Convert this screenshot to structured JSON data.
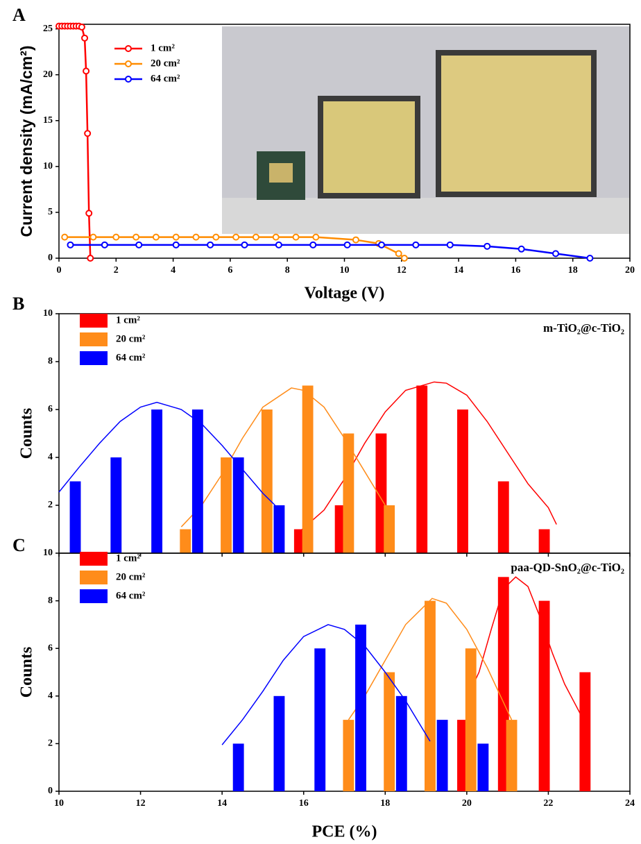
{
  "chart_data": [
    {
      "type": "line",
      "panel_label": "A",
      "xlabel": "Voltage (V)",
      "ylabel": "Current density (mA/cm²)",
      "xlim": [
        0,
        20
      ],
      "xticks": [
        0,
        2,
        4,
        6,
        8,
        10,
        12,
        14,
        16,
        18,
        20
      ],
      "ylim": [
        0,
        25.5
      ],
      "yticks": [
        0,
        5,
        10,
        15,
        20,
        25
      ],
      "legend": "upper left",
      "series": [
        {
          "name": "1 cm²",
          "color": "#ff0000",
          "x": [
            0,
            0.1,
            0.2,
            0.3,
            0.4,
            0.5,
            0.6,
            0.7,
            0.8,
            0.9,
            0.95,
            1.0,
            1.05,
            1.1
          ],
          "values": [
            25.3,
            25.3,
            25.3,
            25.3,
            25.3,
            25.3,
            25.3,
            25.3,
            25.2,
            24.0,
            20.4,
            13.6,
            4.9,
            0
          ]
        },
        {
          "name": "20 cm²",
          "color": "#ff8c00",
          "x": [
            0.2,
            1.2,
            2.0,
            2.7,
            3.4,
            4.1,
            4.8,
            5.5,
            6.2,
            6.9,
            7.6,
            8.3,
            9.0,
            10.4,
            11.2,
            11.9,
            12.1
          ],
          "values": [
            2.3,
            2.3,
            2.3,
            2.3,
            2.3,
            2.3,
            2.3,
            2.3,
            2.3,
            2.3,
            2.3,
            2.3,
            2.3,
            2.0,
            1.6,
            0.5,
            0
          ]
        },
        {
          "name": "64 cm²",
          "color": "#0000ff",
          "x": [
            0.4,
            1.6,
            2.8,
            4.1,
            5.3,
            6.5,
            7.7,
            8.9,
            10.1,
            11.3,
            12.5,
            13.7,
            15.0,
            16.2,
            17.4,
            18.6
          ],
          "values": [
            1.45,
            1.45,
            1.45,
            1.45,
            1.45,
            1.45,
            1.45,
            1.45,
            1.45,
            1.45,
            1.45,
            1.45,
            1.3,
            1.0,
            0.5,
            0
          ]
        }
      ]
    },
    {
      "type": "bar",
      "panel_label": "B",
      "ylabel": "Counts",
      "annotation": "m-TiO₂@c-TiO₂",
      "xlim": [
        10,
        24
      ],
      "xticks": [
        10,
        12,
        14,
        16,
        18,
        20,
        22,
        24
      ],
      "ylim": [
        0,
        10
      ],
      "yticks": [
        2,
        4,
        6,
        8,
        10
      ],
      "legend": "upper left",
      "series": [
        {
          "name": "1 cm²",
          "color": "#ff0000",
          "x": [
            15.9,
            16.9,
            17.9,
            18.9,
            19.9,
            20.9,
            21.9
          ],
          "values": [
            1,
            2,
            5,
            7,
            6,
            3,
            1
          ],
          "fit": {
            "x": [
              15.9,
              16.5,
              17,
              17.5,
              18,
              18.5,
              19.2,
              19.5,
              20,
              20.5,
              21,
              21.5,
              22,
              22.2
            ],
            "values": [
              0.9,
              1.8,
              3.1,
              4.6,
              5.9,
              6.8,
              7.15,
              7.1,
              6.6,
              5.5,
              4.2,
              2.9,
              1.9,
              1.2
            ]
          }
        },
        {
          "name": "20 cm²",
          "color": "#ff8c1a",
          "x": [
            13.1,
            14.1,
            15.1,
            16.1,
            17.1,
            18.1
          ],
          "values": [
            1,
            4,
            6,
            7,
            5,
            2
          ],
          "fit": {
            "x": [
              13,
              13.5,
              14,
              14.5,
              15,
              15.7,
              16,
              16.5,
              17,
              17.5,
              18
            ],
            "values": [
              1.1,
              2.0,
              3.3,
              4.8,
              6.1,
              6.9,
              6.8,
              6.1,
              4.8,
              3.4,
              2.0
            ]
          }
        },
        {
          "name": "64 cm²",
          "color": "#0000ff",
          "x": [
            10.4,
            11.4,
            12.4,
            13.4,
            14.4,
            15.4
          ],
          "values": [
            3,
            4,
            6,
            6,
            4,
            2
          ],
          "fit": {
            "x": [
              10,
              10.5,
              11,
              11.5,
              12,
              12.4,
              13,
              13.5,
              14,
              14.5,
              15,
              15.3
            ],
            "values": [
              2.55,
              3.6,
              4.6,
              5.5,
              6.1,
              6.3,
              6.0,
              5.4,
              4.5,
              3.5,
              2.5,
              2.0
            ]
          }
        }
      ]
    },
    {
      "type": "bar",
      "panel_label": "C",
      "xlabel": "PCE (%)",
      "ylabel": "Counts",
      "annotation": "paa-QD-SnO₂@c-TiO₂",
      "xlim": [
        10,
        24
      ],
      "xticks": [
        10,
        12,
        14,
        16,
        18,
        20,
        22,
        24
      ],
      "ylim": [
        0,
        10
      ],
      "yticks": [
        0,
        2,
        4,
        6,
        8,
        10
      ],
      "legend": "upper left",
      "series": [
        {
          "name": "1 cm²",
          "color": "#ff0000",
          "x": [
            19.9,
            20.9,
            21.9,
            22.9
          ],
          "values": [
            3,
            9,
            8,
            5
          ],
          "fit": {
            "x": [
              20,
              20.3,
              20.6,
              20.9,
              21.2,
              21.5,
              21.8,
              22.1,
              22.4,
              22.8
            ],
            "values": [
              3.9,
              5.0,
              6.8,
              8.5,
              9.0,
              8.6,
              7.3,
              5.8,
              4.5,
              3.2
            ]
          }
        },
        {
          "name": "20 cm²",
          "color": "#ff8c1a",
          "x": [
            17.1,
            18.1,
            19.1,
            20.1,
            21.1
          ],
          "values": [
            3,
            5,
            8,
            6,
            3
          ],
          "fit": {
            "x": [
              17.1,
              17.5,
              18,
              18.5,
              19.15,
              19.5,
              20,
              20.5,
              21.1
            ],
            "values": [
              3.0,
              4.0,
              5.5,
              7.0,
              8.1,
              7.9,
              6.8,
              5.2,
              3.0
            ]
          }
        },
        {
          "name": "64 cm²",
          "color": "#0000ff",
          "x": [
            14.4,
            15.4,
            16.4,
            17.4,
            18.4,
            19.4,
            20.4
          ],
          "values": [
            2,
            4,
            6,
            7,
            4,
            3,
            2
          ],
          "fit": {
            "x": [
              14,
              14.5,
              15,
              15.5,
              16,
              16.6,
              17,
              17.5,
              18,
              18.5,
              19.1
            ],
            "values": [
              1.95,
              3.0,
              4.2,
              5.5,
              6.5,
              7.0,
              6.8,
              6.1,
              5.0,
              3.8,
              2.1
            ]
          }
        }
      ]
    }
  ]
}
